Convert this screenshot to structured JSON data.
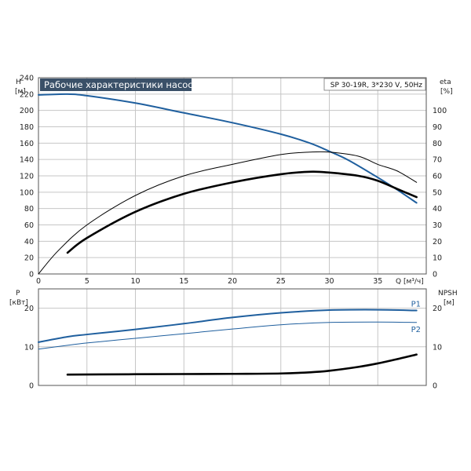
{
  "title": "Рабочие характеристики насоса",
  "model": "SP 30-19R, 3*230 V, 50Hz",
  "colors": {
    "blue": "#1f5f9e",
    "black": "#000000",
    "title_bg": "#3a5068",
    "grid": "#c6c6c6"
  },
  "chart_data": [
    {
      "type": "line",
      "panel": "head-efficiency",
      "xlabel": "Q [м³/ч]",
      "ylabel": "H\n[м]",
      "y2label": "eta\n[%]",
      "xlim": [
        0,
        40
      ],
      "ylim": [
        0,
        240
      ],
      "y2lim": [
        0,
        120
      ],
      "xticks": [
        0,
        5,
        10,
        15,
        20,
        25,
        30,
        35
      ],
      "yticks": [
        0,
        20,
        40,
        60,
        80,
        100,
        120,
        140,
        160,
        180,
        200,
        220,
        240
      ],
      "y2ticks": [
        0,
        10,
        20,
        30,
        40,
        50,
        60,
        70,
        80,
        90,
        100
      ],
      "grid": true,
      "series": [
        {
          "axis": "y",
          "color": "#1f5f9e",
          "width": 2,
          "x": [
            0,
            3,
            5,
            10,
            15,
            20,
            25,
            28,
            30,
            32,
            35,
            37,
            39
          ],
          "y": [
            219,
            220,
            218,
            209,
            197,
            185,
            171,
            160,
            150,
            139,
            118,
            103,
            87
          ]
        },
        {
          "axis": "y2",
          "color": "#000000",
          "width": 1,
          "x": [
            0,
            2,
            5,
            10,
            15,
            20,
            25,
            28,
            30,
            33,
            35,
            37,
            39
          ],
          "y": [
            0,
            14,
            30,
            48,
            60,
            67,
            73,
            74.5,
            74.5,
            72,
            67,
            63,
            56
          ]
        },
        {
          "axis": "y2",
          "color": "#000000",
          "width": 2.6,
          "x": [
            3,
            5,
            10,
            15,
            20,
            25,
            28,
            30,
            33,
            35,
            37,
            39
          ],
          "y": [
            13,
            22,
            38,
            49,
            56,
            61,
            62.5,
            62,
            60,
            57,
            52,
            47
          ]
        }
      ]
    },
    {
      "type": "line",
      "panel": "power-npsh",
      "ylabel": "P\n[кВт]",
      "y2label": "NPSH\n[м]",
      "xlim": [
        0,
        40
      ],
      "ylim": [
        0,
        25
      ],
      "y2lim": [
        0,
        25
      ],
      "yticks": [
        0,
        10,
        20
      ],
      "y2ticks": [
        0,
        10,
        20
      ],
      "grid": true,
      "series": [
        {
          "name": "P1",
          "axis": "y",
          "color": "#1f5f9e",
          "width": 2,
          "x": [
            0,
            3,
            5,
            10,
            15,
            20,
            25,
            30,
            35,
            39
          ],
          "y": [
            11.2,
            12.6,
            13.2,
            14.5,
            16.0,
            17.6,
            18.8,
            19.5,
            19.6,
            19.4
          ]
        },
        {
          "name": "P2",
          "axis": "y",
          "color": "#1f5f9e",
          "width": 1,
          "x": [
            0,
            3,
            5,
            10,
            15,
            20,
            25,
            30,
            35,
            39
          ],
          "y": [
            9.4,
            10.4,
            11.0,
            12.2,
            13.4,
            14.6,
            15.7,
            16.3,
            16.4,
            16.3
          ]
        },
        {
          "axis": "y2",
          "color": "#000000",
          "width": 2.6,
          "x": [
            3,
            10,
            20,
            25,
            28,
            30,
            33,
            35,
            37,
            39
          ],
          "y": [
            2.8,
            2.9,
            3.0,
            3.1,
            3.4,
            3.8,
            4.8,
            5.7,
            6.8,
            8.0
          ]
        }
      ]
    }
  ]
}
